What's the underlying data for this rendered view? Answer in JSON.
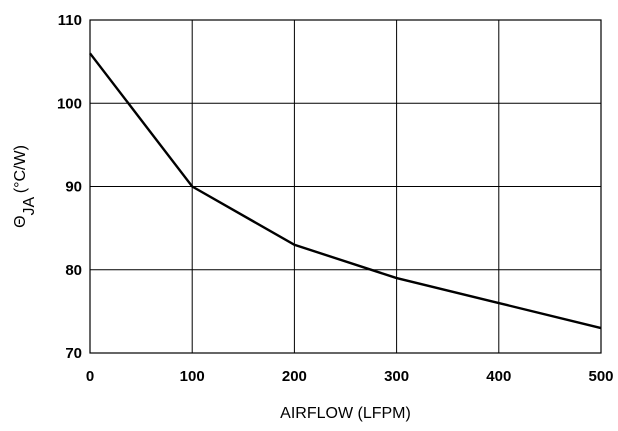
{
  "chart_data": {
    "type": "line",
    "title": "",
    "xlabel": "AIRFLOW (LFPM)",
    "ylabel": {
      "symbol": "Θ",
      "subscript": "JA",
      "unit": " (°C/W)"
    },
    "x_ticks": [
      "0",
      "100",
      "200",
      "300",
      "400",
      "500"
    ],
    "y_ticks": [
      "70",
      "80",
      "90",
      "100",
      "110"
    ],
    "xlim": [
      0,
      500
    ],
    "ylim": [
      70,
      110
    ],
    "grid": true,
    "series": [
      {
        "x": [
          0,
          100,
          200,
          300,
          400,
          500
        ],
        "y": [
          106,
          90,
          83,
          79,
          76,
          73
        ]
      }
    ],
    "colors": {
      "line": "#000000",
      "grid": "#000000"
    }
  }
}
